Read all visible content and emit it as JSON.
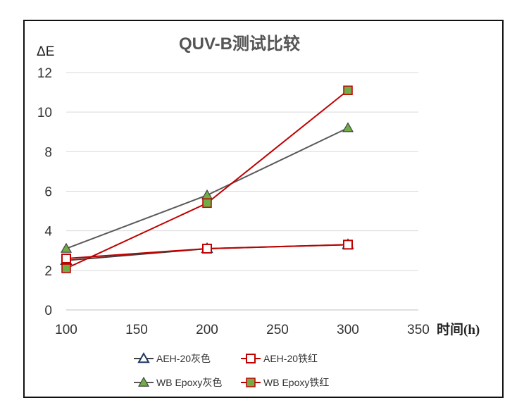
{
  "chart_data": {
    "type": "line",
    "title": "QUV-B测试比较",
    "ylabel": "ΔE",
    "xlabel": "时间(h)",
    "xlim": [
      100,
      350
    ],
    "ylim": [
      0,
      12
    ],
    "x_ticks": [
      100,
      150,
      200,
      250,
      300,
      350
    ],
    "y_ticks": [
      0,
      2,
      4,
      6,
      8,
      10,
      12
    ],
    "grid": true,
    "legend_position": "bottom",
    "x": [
      100,
      200,
      300
    ],
    "series": [
      {
        "name": "AEH-20灰色",
        "values": [
          2.5,
          3.1,
          3.3
        ],
        "line_color": "#404040",
        "marker": "triangle-outline",
        "marker_color": "#1f3864"
      },
      {
        "name": "AEH-20铁红",
        "values": [
          2.6,
          3.1,
          3.3
        ],
        "line_color": "#c00000",
        "marker": "square-outline",
        "marker_color": "#c00000"
      },
      {
        "name": "WB Epoxy灰色",
        "values": [
          3.1,
          5.8,
          9.2
        ],
        "line_color": "#595959",
        "marker": "triangle-filled",
        "marker_color": "#70ad47"
      },
      {
        "name": "WB Epoxy铁红",
        "values": [
          2.1,
          5.4,
          11.1
        ],
        "line_color": "#c00000",
        "marker": "square-filled",
        "marker_color": "#70ad47"
      }
    ]
  }
}
